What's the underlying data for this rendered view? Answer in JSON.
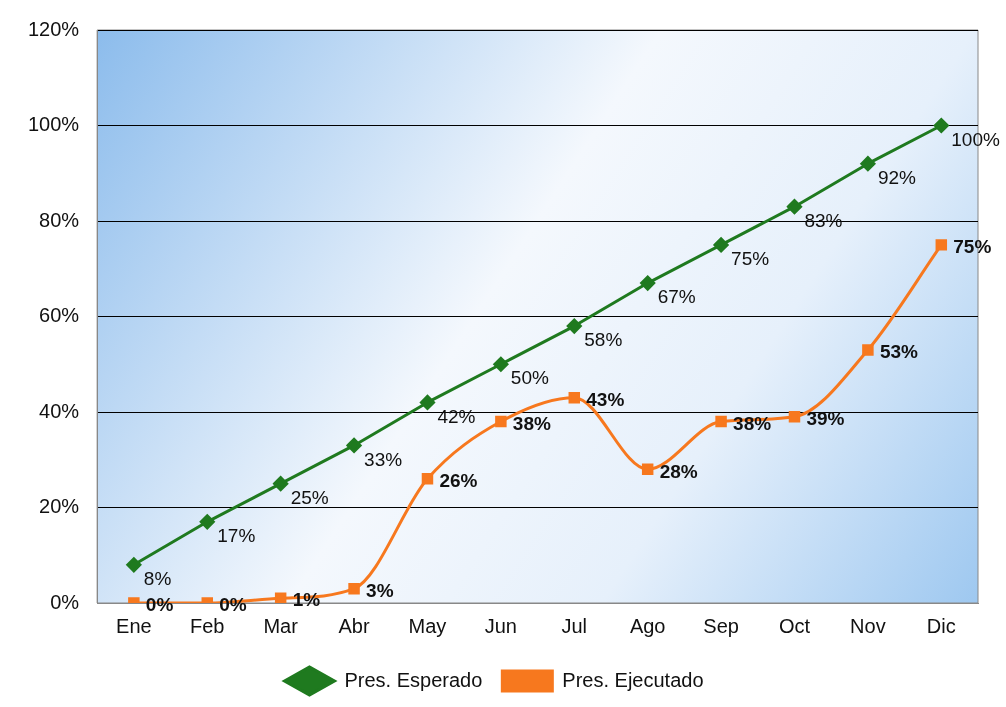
{
  "chart_data": {
    "type": "line",
    "categories": [
      "Ene",
      "Feb",
      "Mar",
      "Abr",
      "May",
      "Jun",
      "Jul",
      "Ago",
      "Sep",
      "Oct",
      "Nov",
      "Dic"
    ],
    "series": [
      {
        "name": "Pres. Esperado",
        "color": "#1f7a1f",
        "marker": "diamond",
        "values": [
          8,
          17,
          25,
          33,
          42,
          50,
          58,
          67,
          75,
          83,
          92,
          100
        ],
        "value_labels": [
          "8%",
          "17%",
          "25%",
          "33%",
          "42%",
          "50%",
          "58%",
          "67%",
          "75%",
          "83%",
          "92%",
          "100%"
        ]
      },
      {
        "name": "Pres. Ejecutado",
        "color": "#f7781e",
        "marker": "square",
        "values": [
          0,
          0,
          1,
          3,
          26,
          38,
          43,
          28,
          38,
          39,
          53,
          75
        ],
        "value_labels": [
          "0%",
          "0%",
          "1%",
          "3%",
          "26%",
          "38%",
          "43%",
          "28%",
          "38%",
          "39%",
          "53%",
          "75%"
        ]
      }
    ],
    "ylim": [
      0,
      120
    ],
    "yticks": [
      {
        "value": 0,
        "label": "0%"
      },
      {
        "value": 20,
        "label": "20%"
      },
      {
        "value": 40,
        "label": "40%"
      },
      {
        "value": 60,
        "label": "60%"
      },
      {
        "value": 80,
        "label": "80%"
      },
      {
        "value": 100,
        "label": "100%"
      },
      {
        "value": 120,
        "label": "120%"
      }
    ],
    "grid": "y",
    "legend": "bottom",
    "line_style": "solid"
  }
}
